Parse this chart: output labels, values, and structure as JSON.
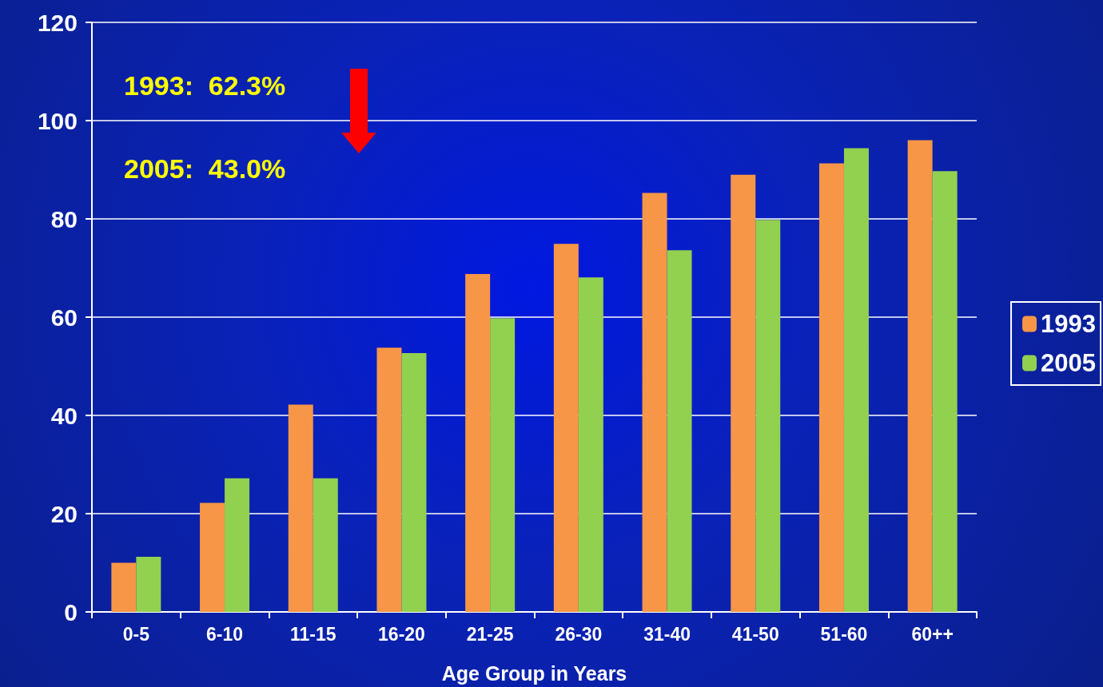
{
  "chart_data": {
    "type": "bar",
    "xlabel": "Age Group in Years",
    "categories": [
      "0-5",
      "6-10",
      "11-15",
      "16-20",
      "21-25",
      "26-30",
      "31-40",
      "41-50",
      "51-60",
      "60++"
    ],
    "series": [
      {
        "name": "1993",
        "color": "#f79646",
        "values": [
          10,
          22.2,
          42.2,
          53.8,
          68.8,
          74.9,
          85.3,
          89,
          91.3,
          96
        ]
      },
      {
        "name": "2005",
        "color": "#92d050",
        "values": [
          11.2,
          27.2,
          27.2,
          52.7,
          59.8,
          68.1,
          73.6,
          79.8,
          94.4,
          89.7
        ]
      }
    ],
    "ylim": [
      0,
      120
    ],
    "yticks": [
      0,
      20,
      40,
      60,
      80,
      100,
      120
    ],
    "grid": "y",
    "legend": "right",
    "annotations": [
      "1993:  62.3%",
      "2005:  43.0%"
    ]
  }
}
